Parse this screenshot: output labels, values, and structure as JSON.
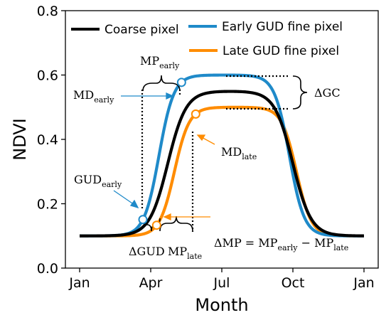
{
  "chart_data": {
    "type": "line",
    "xlabel": "Month",
    "ylabel": "NDVI",
    "xlim": [
      0,
      12
    ],
    "ylim": [
      0,
      0.8
    ],
    "x_ticks": [
      {
        "label": "Jan",
        "value": 0
      },
      {
        "label": "Apr",
        "value": 3
      },
      {
        "label": "Jul",
        "value": 6
      },
      {
        "label": "Oct",
        "value": 9
      },
      {
        "label": "Jan",
        "value": 12
      }
    ],
    "y_ticks": [
      "0.0",
      "0.2",
      "0.4",
      "0.6",
      "0.8"
    ],
    "y_tick_values": [
      0,
      0.2,
      0.4,
      0.6,
      0.8
    ],
    "grid": false,
    "legend_position": "top",
    "series": [
      {
        "name": "Coarse pixel",
        "color": "#000000",
        "base": 0.1,
        "amplitude": 0.45,
        "rise_mid": 3.72,
        "rise_rate": 2.6,
        "fall_mid": 9.0,
        "fall_rate": 2.6
      },
      {
        "name": "Early GUD fine pixel",
        "color": "#1f8ac9",
        "base": 0.1,
        "amplitude": 0.5,
        "rise_mid": 3.35,
        "rise_rate": 3.2,
        "fall_mid": 8.85,
        "fall_rate": 3.2
      },
      {
        "name": "Late GUD fine pixel",
        "color": "#ff8c00",
        "base": 0.1,
        "amplitude": 0.4,
        "rise_mid": 4.0,
        "rise_rate": 3.2,
        "fall_mid": 9.15,
        "fall_rate": 3.2
      }
    ],
    "markers": [
      {
        "series": 1,
        "x": 2.67,
        "label_base": "GUD",
        "label_sub": "early"
      },
      {
        "series": 1,
        "x": 4.3,
        "label_base": "MD",
        "label_sub": "early"
      },
      {
        "series": 2,
        "x": 3.25,
        "label_base": "",
        "label_sub": ""
      },
      {
        "series": 2,
        "x": 4.9,
        "label_base": "MD",
        "label_sub": "late"
      }
    ],
    "annotations": {
      "mp_early": {
        "base": "MP",
        "sub": "early"
      },
      "mp_late": {
        "base": "MP",
        "sub": "late"
      },
      "delta_gud": "ΔGUD",
      "delta_gc": "ΔGC",
      "formula": {
        "lhs": "ΔMP = ",
        "t1": "MP",
        "s1": "early",
        "op": " − ",
        "t2": "MP",
        "s2": "late"
      }
    }
  }
}
